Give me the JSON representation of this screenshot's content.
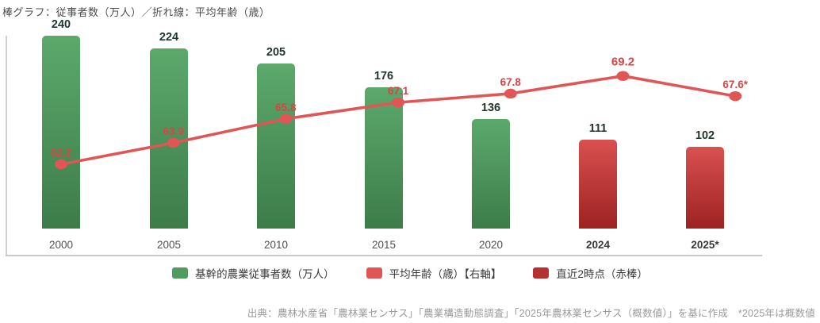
{
  "title": "棒グラフ：従事者数（万人）／折れ線：平均年齢（歳）",
  "colors": {
    "bar_green_top": "#5ca96c",
    "bar_green_bottom": "#3d7c49",
    "bar_red_top": "#d95050",
    "bar_red_bottom": "#9e2222",
    "line": "#e05656",
    "line_label": "#d84545",
    "value_label": "#21352a",
    "axis": "#c9c9c9",
    "legend_green": "#4f9c60",
    "legend_red": "#e05555",
    "legend_dark_red": "#b53030"
  },
  "chart_data": {
    "type": "bar+line",
    "categories": [
      "2000",
      "2005",
      "2010",
      "2015",
      "2020",
      "2024",
      "2025*"
    ],
    "emphasized_categories": [
      "2024",
      "2025*"
    ],
    "series": [
      {
        "name": "基幹的農業従事者数（万人）",
        "type": "bar",
        "axis": "left",
        "values": [
          240,
          224,
          205,
          176,
          136,
          111,
          102
        ],
        "bar_styles": [
          "green",
          "green",
          "green",
          "green",
          "green",
          "red",
          "red"
        ]
      },
      {
        "name": "平均年齢（歳）【右軸】",
        "type": "line",
        "axis": "right",
        "values": [
          62.2,
          63.9,
          65.8,
          67.1,
          67.8,
          69.2,
          67.6
        ],
        "point_labels": [
          "62.2",
          "63.9",
          "65.8",
          "67.1",
          "67.8",
          "69.2",
          "67.6*"
        ],
        "emphasized_point_index": 5
      }
    ],
    "grid": "off",
    "legend_position": "bottom"
  },
  "legend": [
    {
      "label": "基幹的農業従事者数（万人）",
      "swatch": "legend_green"
    },
    {
      "label": "平均年齢（歳）【右軸】",
      "swatch": "legend_red"
    },
    {
      "label": "直近2時点（赤棒）",
      "swatch": "legend_dark_red"
    }
  ],
  "footer": "出典：農林水産省「農林業センサス」「農業構造動態調査」「2025年農林業センサス（概数値）」を基に作成　*2025年は概数値"
}
